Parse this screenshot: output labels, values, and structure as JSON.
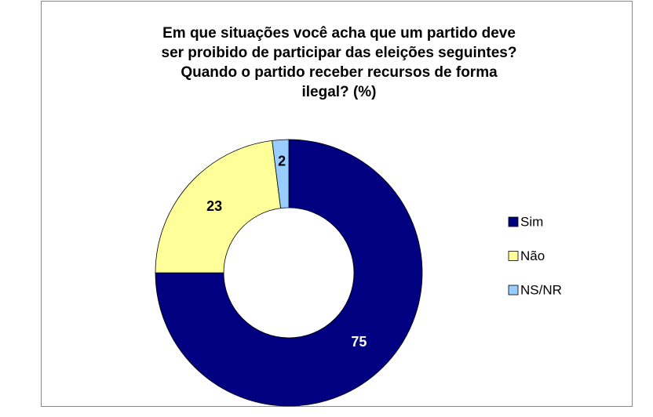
{
  "chart_data": {
    "type": "donut",
    "title": "Em que situações você acha que um partido deve\nser proibido de participar das eleições seguintes?\nQuando o partido receber recursos de forma\nilegal? (%)",
    "categories": [
      "Sim",
      "Não",
      "NS/NR"
    ],
    "values": [
      75,
      23,
      2
    ],
    "colors": [
      "#000080",
      "#FFFF99",
      "#99CCFF"
    ],
    "legend": "right"
  }
}
